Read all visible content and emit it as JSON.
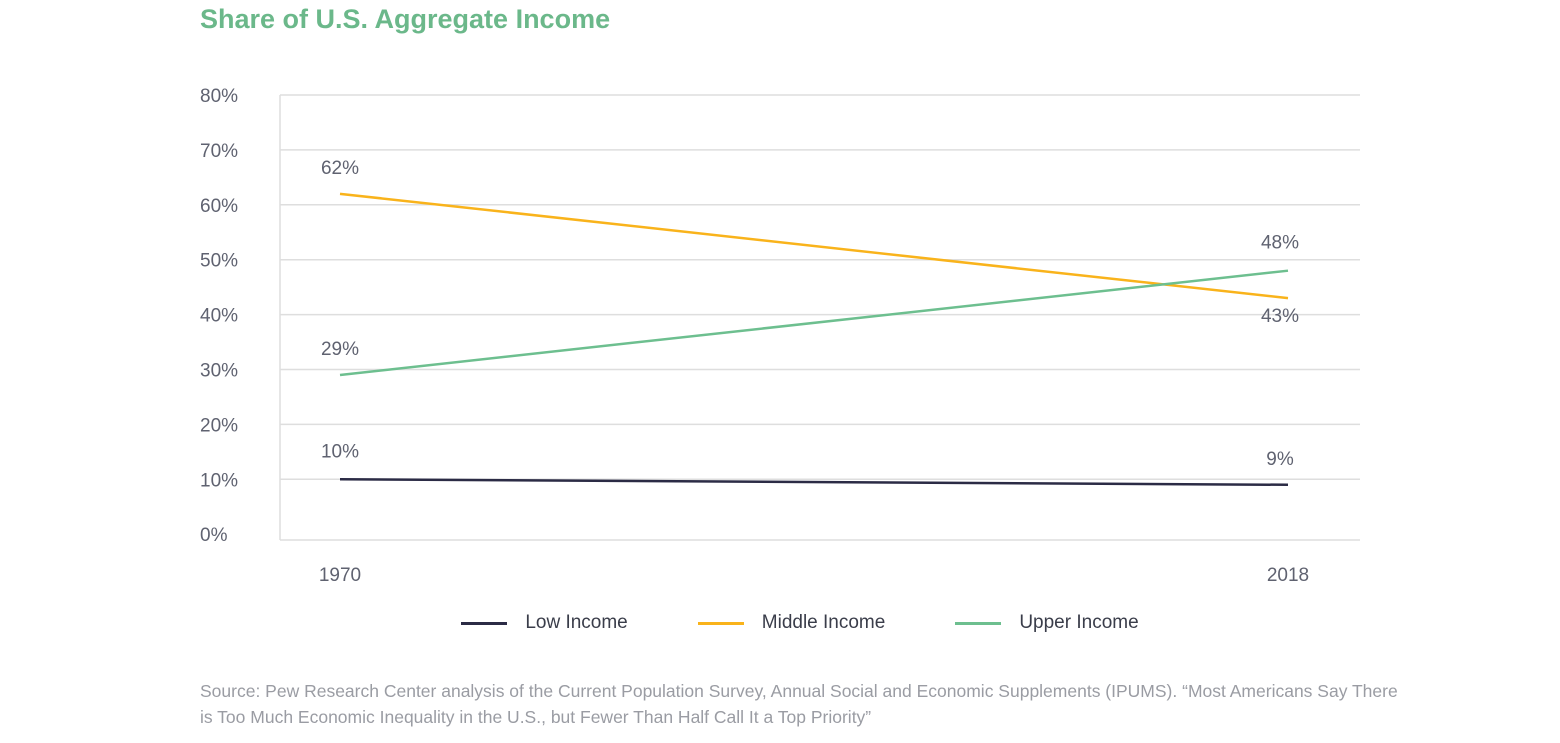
{
  "title": "Share of U.S. Aggregate Income",
  "chart_data": {
    "type": "line",
    "title": "Share of U.S. Aggregate Income",
    "x": [
      "1970",
      "2018"
    ],
    "ylim": [
      0,
      80
    ],
    "yticks": [
      "0%",
      "10%",
      "20%",
      "30%",
      "40%",
      "50%",
      "60%",
      "70%",
      "80%"
    ],
    "grid": true,
    "legend": "bottom",
    "series": [
      {
        "name": "Low Income",
        "values": [
          10,
          9
        ],
        "labels": [
          "10%",
          "9%"
        ],
        "color": "#2b2b45"
      },
      {
        "name": "Middle Income",
        "values": [
          62,
          43
        ],
        "labels": [
          "62%",
          "43%"
        ],
        "color": "#f9b31b"
      },
      {
        "name": "Upper Income",
        "values": [
          29,
          48
        ],
        "labels": [
          "29%",
          "48%"
        ],
        "color": "#6dbf8f"
      }
    ]
  },
  "source": "Source: Pew Research Center analysis of the Current Population Survey, Annual Social and Economic Supplements (IPUMS). “Most Americans Say There is Too Much Economic Inequality in the U.S., but Fewer Than Half Call It a Top Priority”"
}
